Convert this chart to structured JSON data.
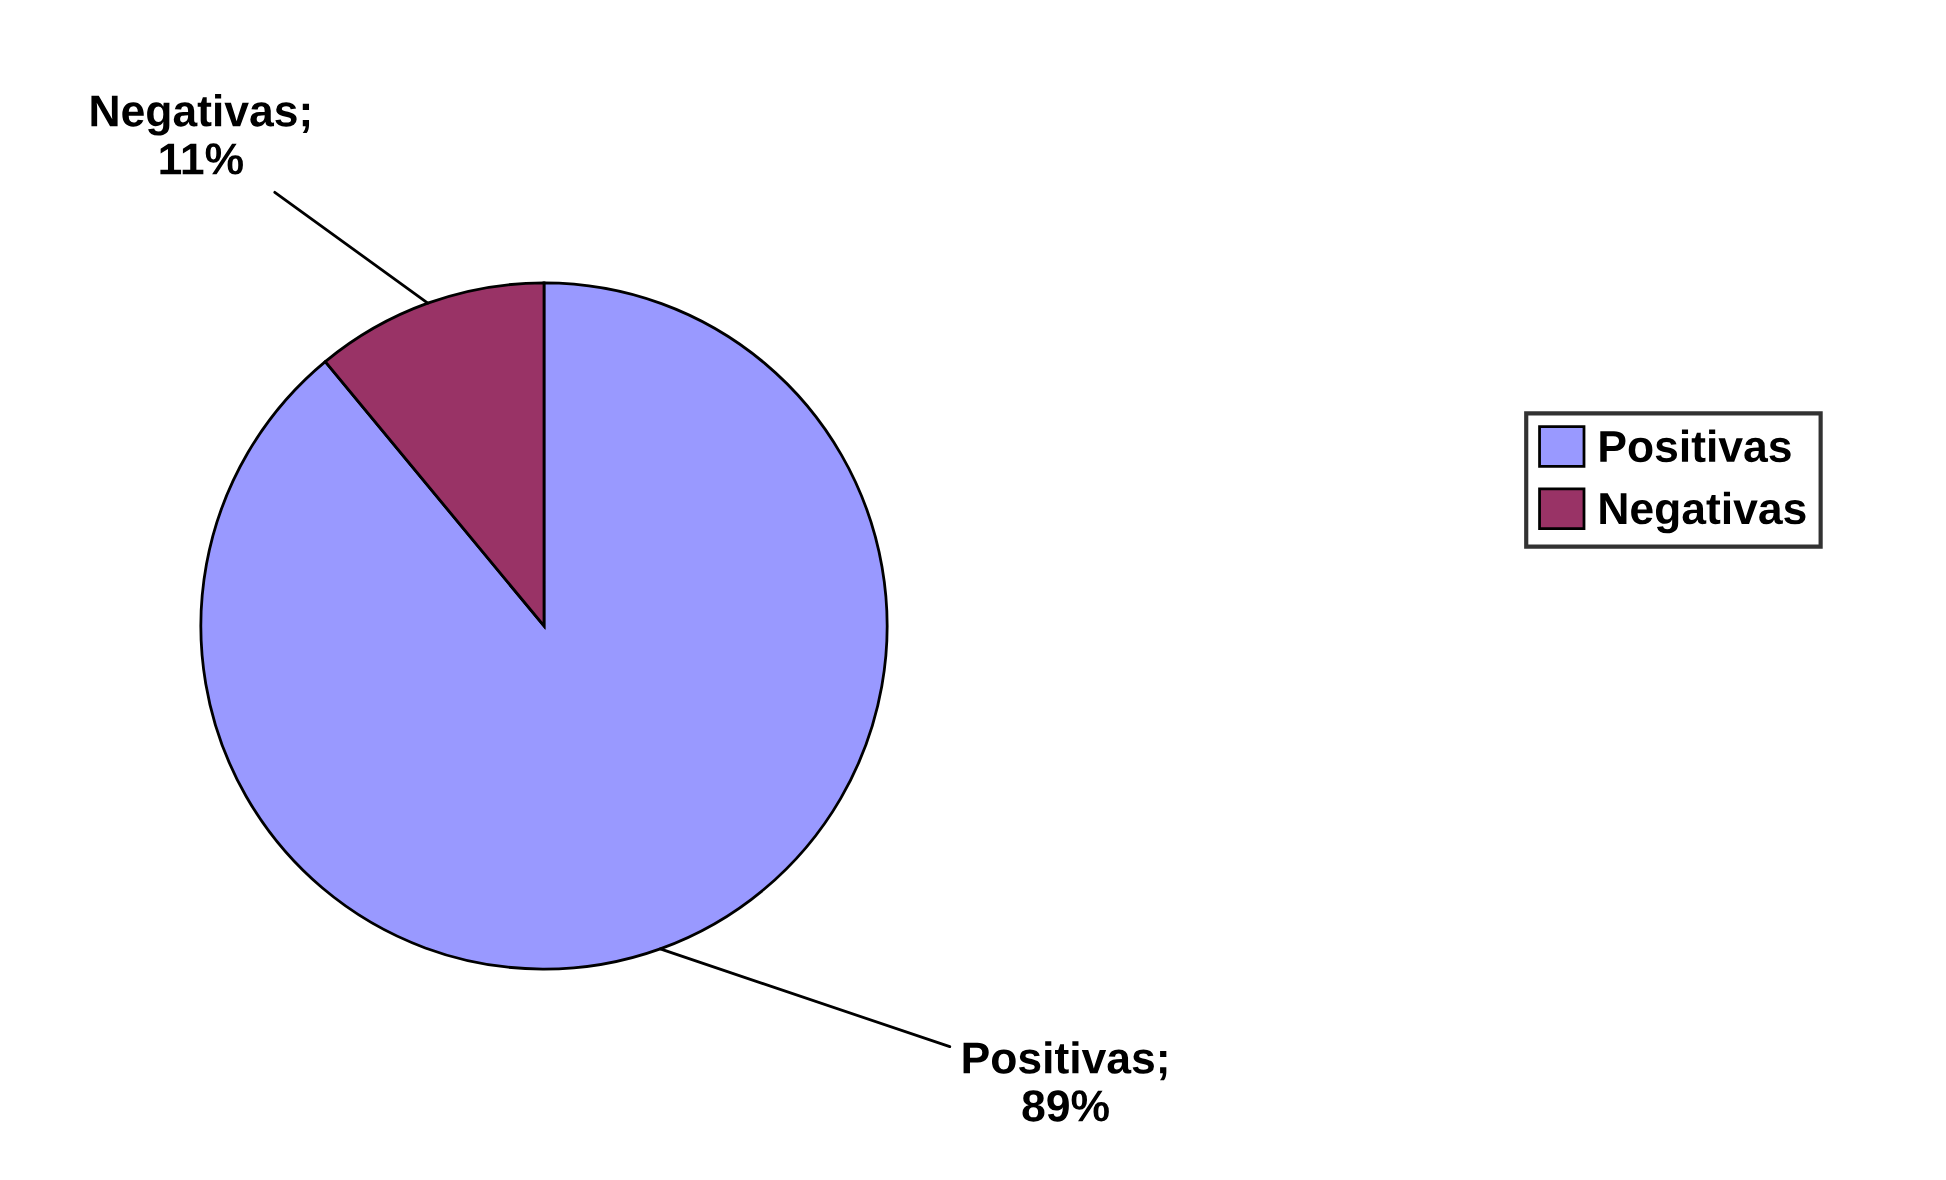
{
  "chart_data": {
    "type": "pie",
    "categories": [
      "Positivas",
      "Negativas"
    ],
    "values": [
      89,
      11
    ],
    "colors": [
      "#9999ff",
      "#993366"
    ],
    "value_labels": [
      "Positivas;\n89%",
      "Negativas;\n11%"
    ],
    "legend": "right"
  }
}
